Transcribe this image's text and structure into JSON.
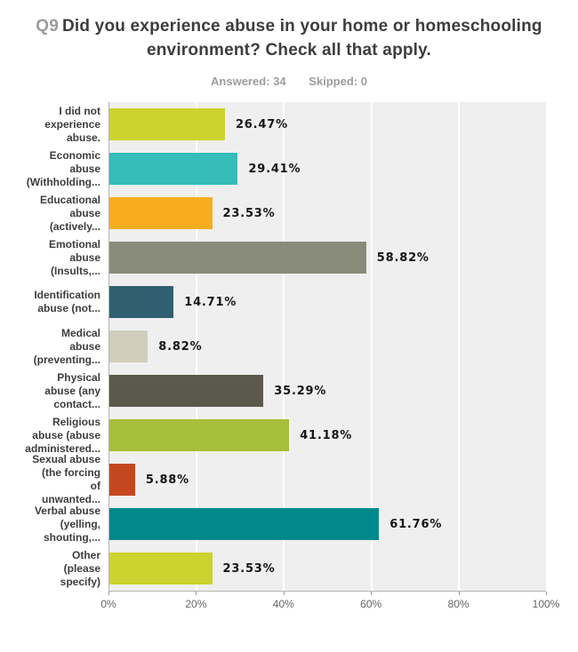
{
  "header": {
    "question_number": "Q9",
    "question_text": "Did you experience abuse in your home or homeschooling environment? Check all that apply.",
    "answered_label": "Answered: 34",
    "skipped_label": "Skipped: 0"
  },
  "chart_data": {
    "type": "bar",
    "orientation": "horizontal",
    "title": "Q9 Did you experience abuse in your home or homeschooling environment? Check all that apply.",
    "subtitle": "Answered: 34  Skipped: 0",
    "answered": 34,
    "skipped": 0,
    "categories": [
      "I did not experience abuse.",
      "Economic abuse (Withholding...",
      "Educational abuse (actively...",
      "Emotional abuse (Insults,...",
      "Identification abuse (not...",
      "Medical abuse (preventing...",
      "Physical abuse (any contact...",
      "Religious abuse (abuse administered...",
      "Sexual abuse (the forcing of unwanted...",
      "Verbal abuse (yelling, shouting,...",
      "Other (please specify)"
    ],
    "display_labels": [
      "I did not\nexperience\nabuse.",
      "Economic\nabuse\n(Withholding...",
      "Educational\nabuse\n(actively...",
      "Emotional\nabuse\n(Insults,...",
      "Identification\nabuse (not...",
      "Medical\nabuse\n(preventing...",
      "Physical\nabuse (any\ncontact...",
      "Religious\nabuse (abuse\nadministered...",
      "Sexual abuse\n(the forcing\nof\nunwanted...",
      "Verbal abuse\n(yelling,\nshouting,...",
      "Other\n(please\nspecify)"
    ],
    "values": [
      26.47,
      29.41,
      23.53,
      58.82,
      14.71,
      8.82,
      35.29,
      41.18,
      5.88,
      61.76,
      23.53
    ],
    "value_labels": [
      "26.47%",
      "29.41%",
      "23.53%",
      "58.82%",
      "14.71%",
      "8.82%",
      "35.29%",
      "41.18%",
      "5.88%",
      "61.76%",
      "23.53%"
    ],
    "bar_colors": [
      "#ccd32e",
      "#36bcb9",
      "#f6ae1f",
      "#8a8c7b",
      "#2f5f70",
      "#d0cdbd",
      "#5b594b",
      "#a6be39",
      "#c4481f",
      "#00898a",
      "#ccd32e"
    ],
    "x_ticks": [
      "0%",
      "20%",
      "40%",
      "60%",
      "80%",
      "100%"
    ],
    "x_tick_positions": [
      0,
      20,
      40,
      60,
      80,
      100
    ],
    "gridline_positions": [
      20,
      40,
      60,
      80
    ],
    "xlim": [
      0,
      100
    ],
    "grid": true,
    "plot_background": "#efefef",
    "gridline_color": "#ffffff",
    "axis_line_color": "#b3b3b3"
  }
}
